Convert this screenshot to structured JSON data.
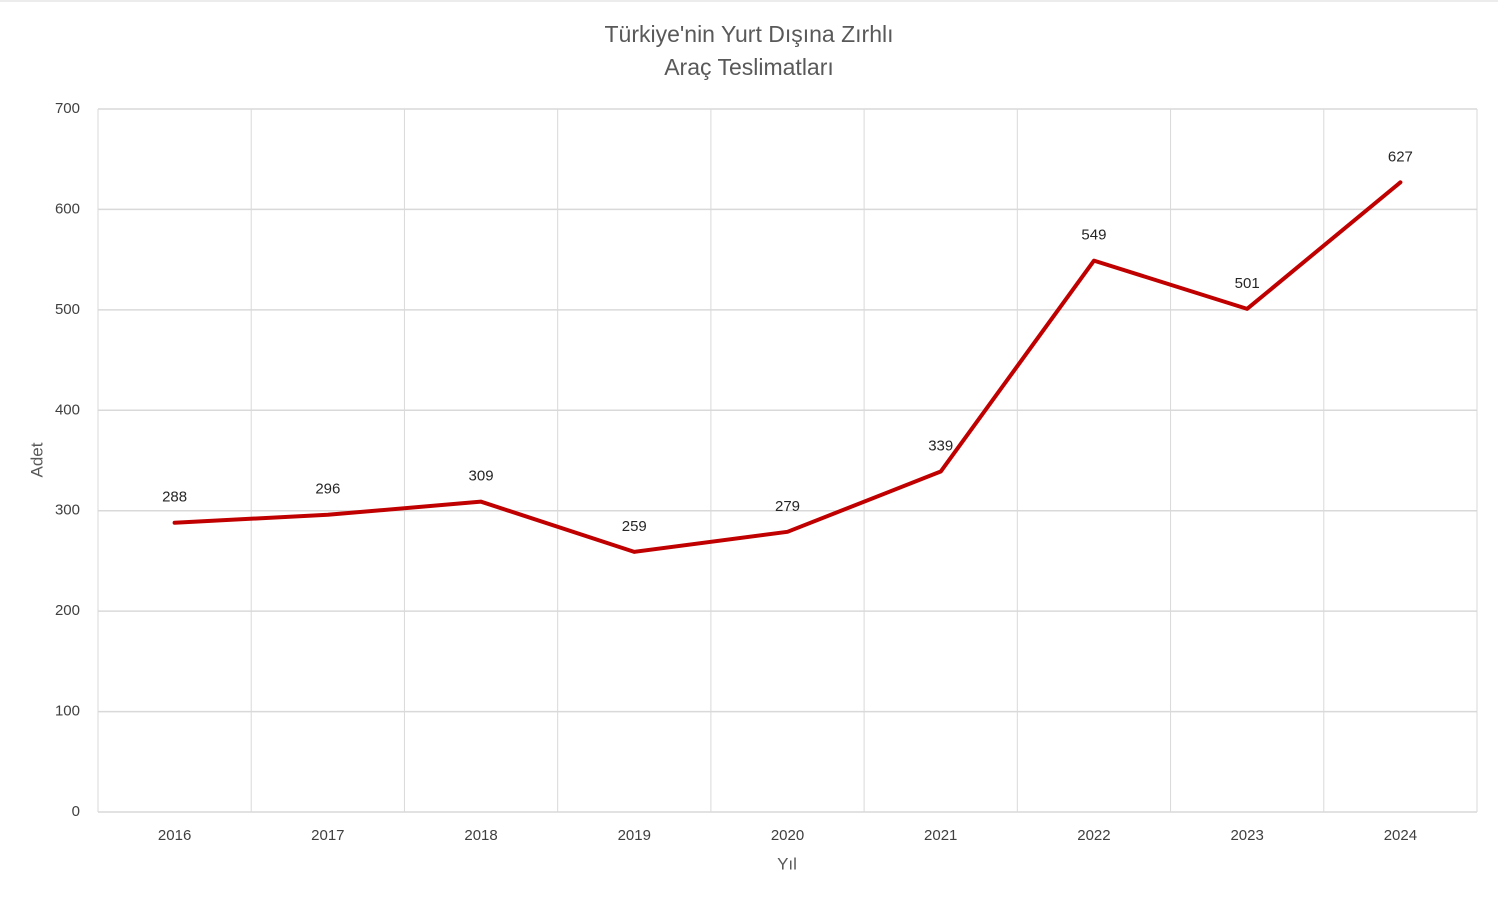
{
  "chart_data": {
    "type": "line",
    "title": [
      "Türkiye'nin Yurt Dışına Zırhlı",
      "Araç Teslimatları"
    ],
    "x_label": "Yıl",
    "y_label": "Adet",
    "categories": [
      "2016",
      "2017",
      "2018",
      "2019",
      "2020",
      "2021",
      "2022",
      "2023",
      "2024"
    ],
    "series": [
      {
        "name": "Adet",
        "color": "#c00000",
        "values": [
          288,
          296,
          309,
          259,
          279,
          339,
          549,
          501,
          627
        ]
      }
    ],
    "ylim": [
      0,
      700
    ],
    "yticks": [
      0,
      100,
      200,
      300,
      400,
      500,
      600,
      700
    ],
    "grid": true,
    "data_labels": true
  }
}
